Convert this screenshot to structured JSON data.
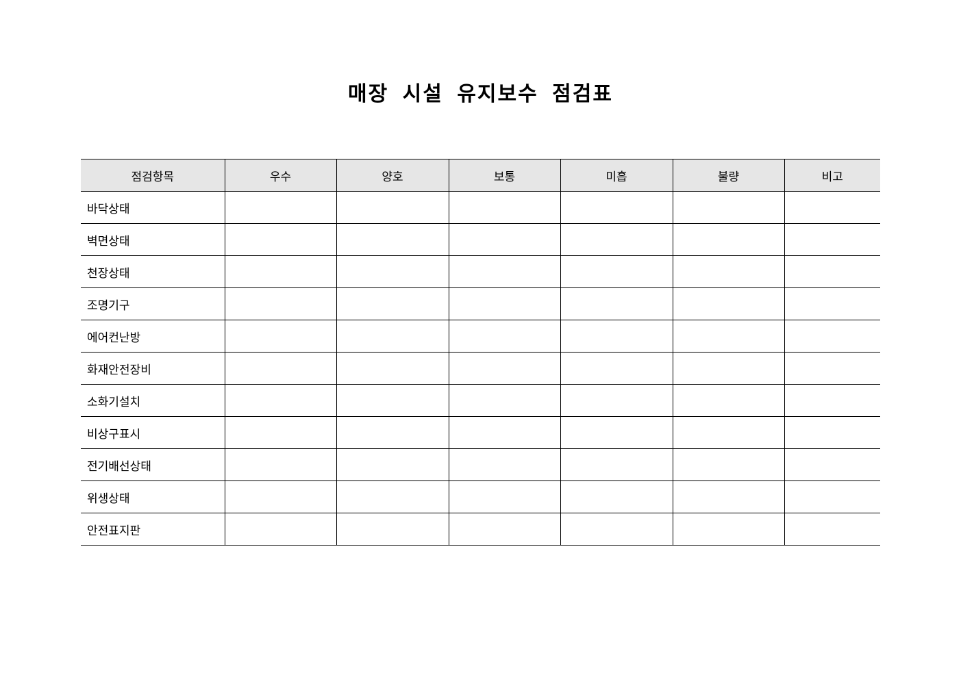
{
  "title": "매장 시설 유지보수 점검표",
  "columns": [
    "점검항목",
    "우수",
    "양호",
    "보통",
    "미흡",
    "불량",
    "비고"
  ],
  "rows": [
    "바닥상태",
    "벽면상태",
    "천장상태",
    "조명기구",
    "에어컨난방",
    "화재안전장비",
    "소화기설치",
    "비상구표시",
    "전기배선상태",
    "위생상태",
    "안전표지판"
  ],
  "colors": {
    "header_bg": "#e6e6e6",
    "border": "#000000"
  }
}
